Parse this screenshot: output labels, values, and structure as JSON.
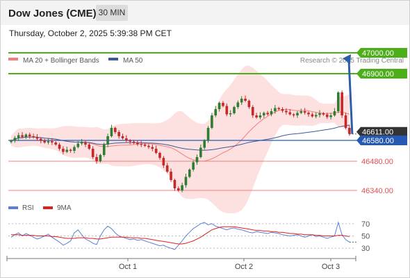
{
  "header": {
    "title": "Dow Jones (CME)",
    "timeframe": "30 MIN",
    "timestamp": "Thursday, October 2, 2025 5:39:38 PM CET"
  },
  "colors": {
    "up_candle": "#2e7d32",
    "down_candle": "#c62828",
    "bollinger_fill": "#fcd7d7",
    "ma20": "#f47c7c",
    "ma50": "#3a5a98",
    "resistance": "#4caf1a",
    "support": "#f08080",
    "pivot": "#2559b4",
    "arrow": "#2e5ea8",
    "rsi": "#5b7fd6",
    "rsi_ma": "#e01f1f"
  },
  "chart_data": {
    "type": "candlestick",
    "legend": [
      {
        "label": "MA 20 + Bollinger Bands",
        "color": "#f47c7c"
      },
      {
        "label": "MA 50",
        "color": "#3a5a98"
      }
    ],
    "credit": "Research © 2025 Trading Central",
    "x_ticks": [
      "Oct 1",
      "Oct 2",
      "Oct 3"
    ],
    "ylim": [
      46320,
      47020
    ],
    "resistances": [
      47000.0,
      46900.0
    ],
    "pivot": 46580.0,
    "supports": [
      46480.0,
      46340.0
    ],
    "last_price": 46611.0,
    "price_labels": [
      "47000.00",
      "46900.00",
      "46611.00",
      "46580.00",
      "46480.00",
      "46340.00"
    ],
    "arrow": {
      "from": 46611,
      "to": 47000,
      "direction": "up"
    },
    "closes": [
      46578,
      46592,
      46605,
      46596,
      46608,
      46600,
      46595,
      46588,
      46578,
      46570,
      46576,
      46570,
      46560,
      46540,
      46525,
      46535,
      46530,
      46548,
      46565,
      46572,
      46560,
      46540,
      46500,
      46480,
      46510,
      46560,
      46600,
      46640,
      46620,
      46600,
      46590,
      46580,
      46574,
      46568,
      46562,
      46560,
      46554,
      46548,
      46540,
      46520,
      46496,
      46460,
      46430,
      46390,
      46350,
      46340,
      46365,
      46405,
      46440,
      46475,
      46500,
      46545,
      46580,
      46640,
      46700,
      46730,
      46760,
      46745,
      46705,
      46710,
      46740,
      46762,
      46780,
      46770,
      46740,
      46700,
      46690,
      46700,
      46712,
      46705,
      46720,
      46735,
      46730,
      46722,
      46715,
      46705,
      46700,
      46712,
      46720,
      46713,
      46705,
      46695,
      46702,
      46710,
      46704,
      46692,
      46700,
      46720,
      46810,
      46700,
      46640,
      46611
    ],
    "rsi": {
      "legend": [
        {
          "label": "RSI",
          "color": "#5b7fd6"
        },
        {
          "label": "9MA",
          "color": "#e01f1f"
        }
      ],
      "ylim": [
        20,
        80
      ],
      "ticks": [
        70,
        50,
        30
      ],
      "tick_labels": [
        "70",
        "50",
        "30"
      ],
      "values": [
        48,
        52,
        55,
        50,
        54,
        51,
        48,
        45,
        47,
        50,
        53,
        48,
        44,
        40,
        35,
        38,
        42,
        55,
        60,
        52,
        45,
        42,
        38,
        36,
        50,
        60,
        66,
        62,
        55,
        50,
        48,
        46,
        44,
        45,
        43,
        44,
        42,
        40,
        38,
        36,
        34,
        35,
        32,
        30,
        28,
        35,
        42,
        50,
        56,
        62,
        66,
        70,
        72,
        68,
        70,
        66,
        64,
        62,
        60,
        62,
        63,
        61,
        60,
        58,
        56,
        55,
        57,
        56,
        55,
        54,
        56,
        55,
        54,
        52,
        51,
        50,
        51,
        52,
        50,
        48,
        50,
        52,
        49,
        50,
        48,
        46,
        48,
        50,
        72,
        52,
        44,
        40
      ],
      "ma_values": [
        52,
        52,
        52,
        51,
        51,
        51,
        51,
        50,
        50,
        50,
        50,
        49,
        49,
        48,
        47,
        46,
        46,
        46,
        47,
        47,
        47,
        46,
        46,
        45,
        45,
        46,
        47,
        48,
        48,
        48,
        48,
        48,
        47,
        47,
        47,
        46,
        46,
        45,
        44,
        43,
        42,
        41,
        40,
        39,
        38,
        37,
        37,
        38,
        40,
        42,
        45,
        48,
        52,
        56,
        60,
        62,
        64,
        65,
        65,
        65,
        65,
        64,
        63,
        62,
        61,
        60,
        59,
        59,
        58,
        58,
        57,
        57,
        56,
        56,
        55,
        54,
        54,
        53,
        53,
        52,
        52,
        52,
        51,
        51,
        50,
        50,
        50,
        50,
        51,
        51,
        50,
        49
      ]
    }
  }
}
